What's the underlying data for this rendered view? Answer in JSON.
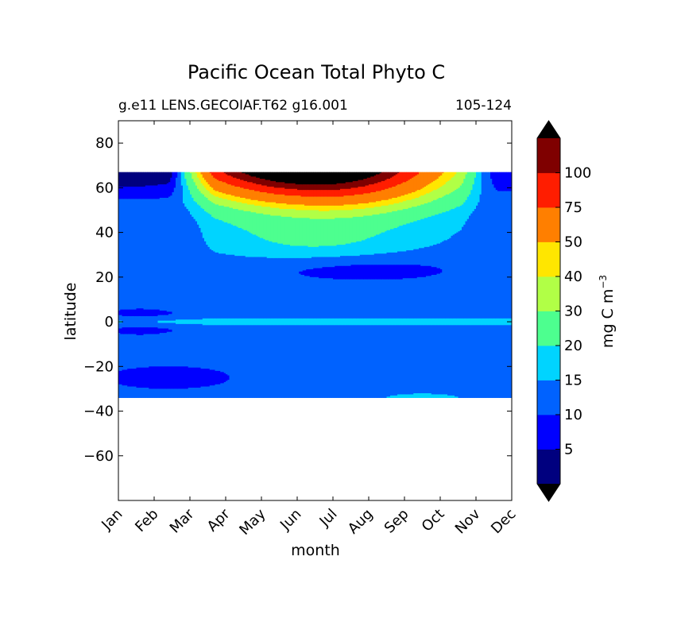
{
  "chart_data": {
    "type": "heatmap",
    "title": "Pacific Ocean Total Phyto C",
    "subtitle_left": "g.e11 LENS.GECOIAF.T62 g16.001",
    "subtitle_right": "105-124",
    "xlabel": "month",
    "ylabel": "latitude",
    "x_categories": [
      "Jan",
      "Feb",
      "Mar",
      "Apr",
      "May",
      "Jun",
      "Jul",
      "Aug",
      "Sep",
      "Oct",
      "Nov",
      "Dec"
    ],
    "xlim": [
      0,
      11
    ],
    "ylim": [
      -80,
      90
    ],
    "y_ticks": [
      80,
      60,
      40,
      20,
      0,
      -20,
      -40,
      -60
    ],
    "data_extent_lat": [
      -34,
      67
    ],
    "colorbar": {
      "label": "mg C m",
      "label_exponent": "−3",
      "levels": [
        0,
        5,
        10,
        15,
        20,
        30,
        40,
        50,
        75,
        100
      ],
      "tick_labels": [
        "5",
        "10",
        "15",
        "20",
        "30",
        "40",
        "50",
        "75",
        "100"
      ],
      "colors": [
        "#00007f",
        "#0000ff",
        "#0062ff",
        "#00d4ff",
        "#4dff8f",
        "#b1ff46",
        "#ffe600",
        "#ff7f00",
        "#ff1d00",
        "#7f0000"
      ],
      "extend_min_color": "#000000",
      "extend_max_color": "#000000",
      "beyond_max_color": "#000000"
    },
    "field_description_months": [
      0,
      1,
      2,
      3,
      4,
      5,
      6,
      7,
      8,
      9,
      10,
      11
    ],
    "grid": false
  }
}
